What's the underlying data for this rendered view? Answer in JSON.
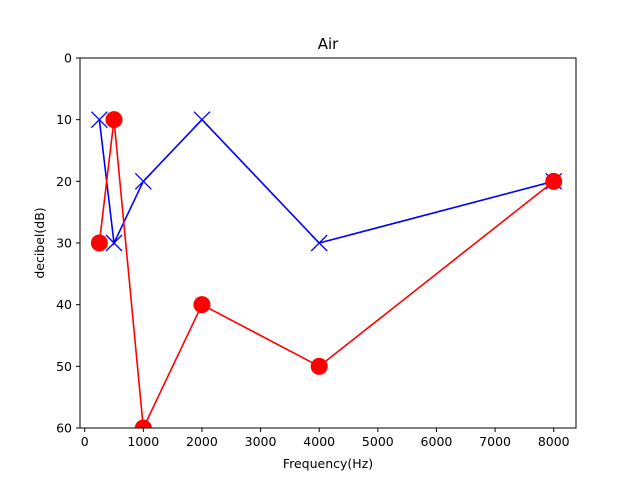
{
  "chart_data": {
    "type": "line",
    "title": "Air",
    "xlabel": "Frequency(Hz)",
    "ylabel": "decibel(dB)",
    "xlim": [
      -80,
      8380
    ],
    "ylim": [
      60,
      0
    ],
    "y_inverted": true,
    "grid": false,
    "x_ticks": [
      0,
      1000,
      2000,
      3000,
      4000,
      5000,
      6000,
      7000,
      8000
    ],
    "y_ticks": [
      0,
      10,
      20,
      30,
      40,
      50,
      60
    ],
    "series": [
      {
        "marker": "x",
        "color": "#0000ff",
        "x": [
          250,
          500,
          1000,
          2000,
          4000,
          8000
        ],
        "y": [
          10,
          30,
          20,
          10,
          30,
          20
        ]
      },
      {
        "marker": "circle",
        "color": "#ff0000",
        "x": [
          250,
          500,
          1000,
          2000,
          4000,
          8000
        ],
        "y": [
          30,
          10,
          60,
          40,
          50,
          20
        ]
      }
    ]
  }
}
